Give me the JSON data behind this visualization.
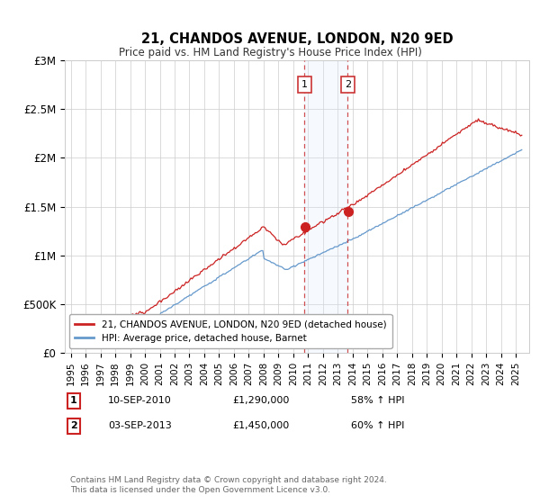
{
  "title": "21, CHANDOS AVENUE, LONDON, N20 9ED",
  "subtitle": "Price paid vs. HM Land Registry's House Price Index (HPI)",
  "ylim": [
    0,
    3000000
  ],
  "yticks": [
    0,
    500000,
    1000000,
    1500000,
    2000000,
    2500000,
    3000000
  ],
  "ytick_labels": [
    "£0",
    "£500K",
    "£1M",
    "£1.5M",
    "£2M",
    "£2.5M",
    "£3M"
  ],
  "background_color": "#ffffff",
  "grid_color": "#cccccc",
  "sale1_date": 2010.75,
  "sale1_price": 1290000,
  "sale2_date": 2013.67,
  "sale2_price": 1450000,
  "shade_color": "#ddeeff",
  "hpi_line_color": "#6699cc",
  "price_line_color": "#cc2222",
  "legend1_label": "21, CHANDOS AVENUE, LONDON, N20 9ED (detached house)",
  "legend2_label": "HPI: Average price, detached house, Barnet",
  "footer": "Contains HM Land Registry data © Crown copyright and database right 2024.\nThis data is licensed under the Open Government Licence v3.0.",
  "vline_color": "#cc3333",
  "xlim_start": 1994.6,
  "xlim_end": 2025.9,
  "x_years": [
    1995,
    1996,
    1997,
    1998,
    1999,
    2000,
    2001,
    2002,
    2003,
    2004,
    2005,
    2006,
    2007,
    2008,
    2009,
    2010,
    2011,
    2012,
    2013,
    2014,
    2015,
    2016,
    2017,
    2018,
    2019,
    2020,
    2021,
    2022,
    2023,
    2024,
    2025
  ]
}
